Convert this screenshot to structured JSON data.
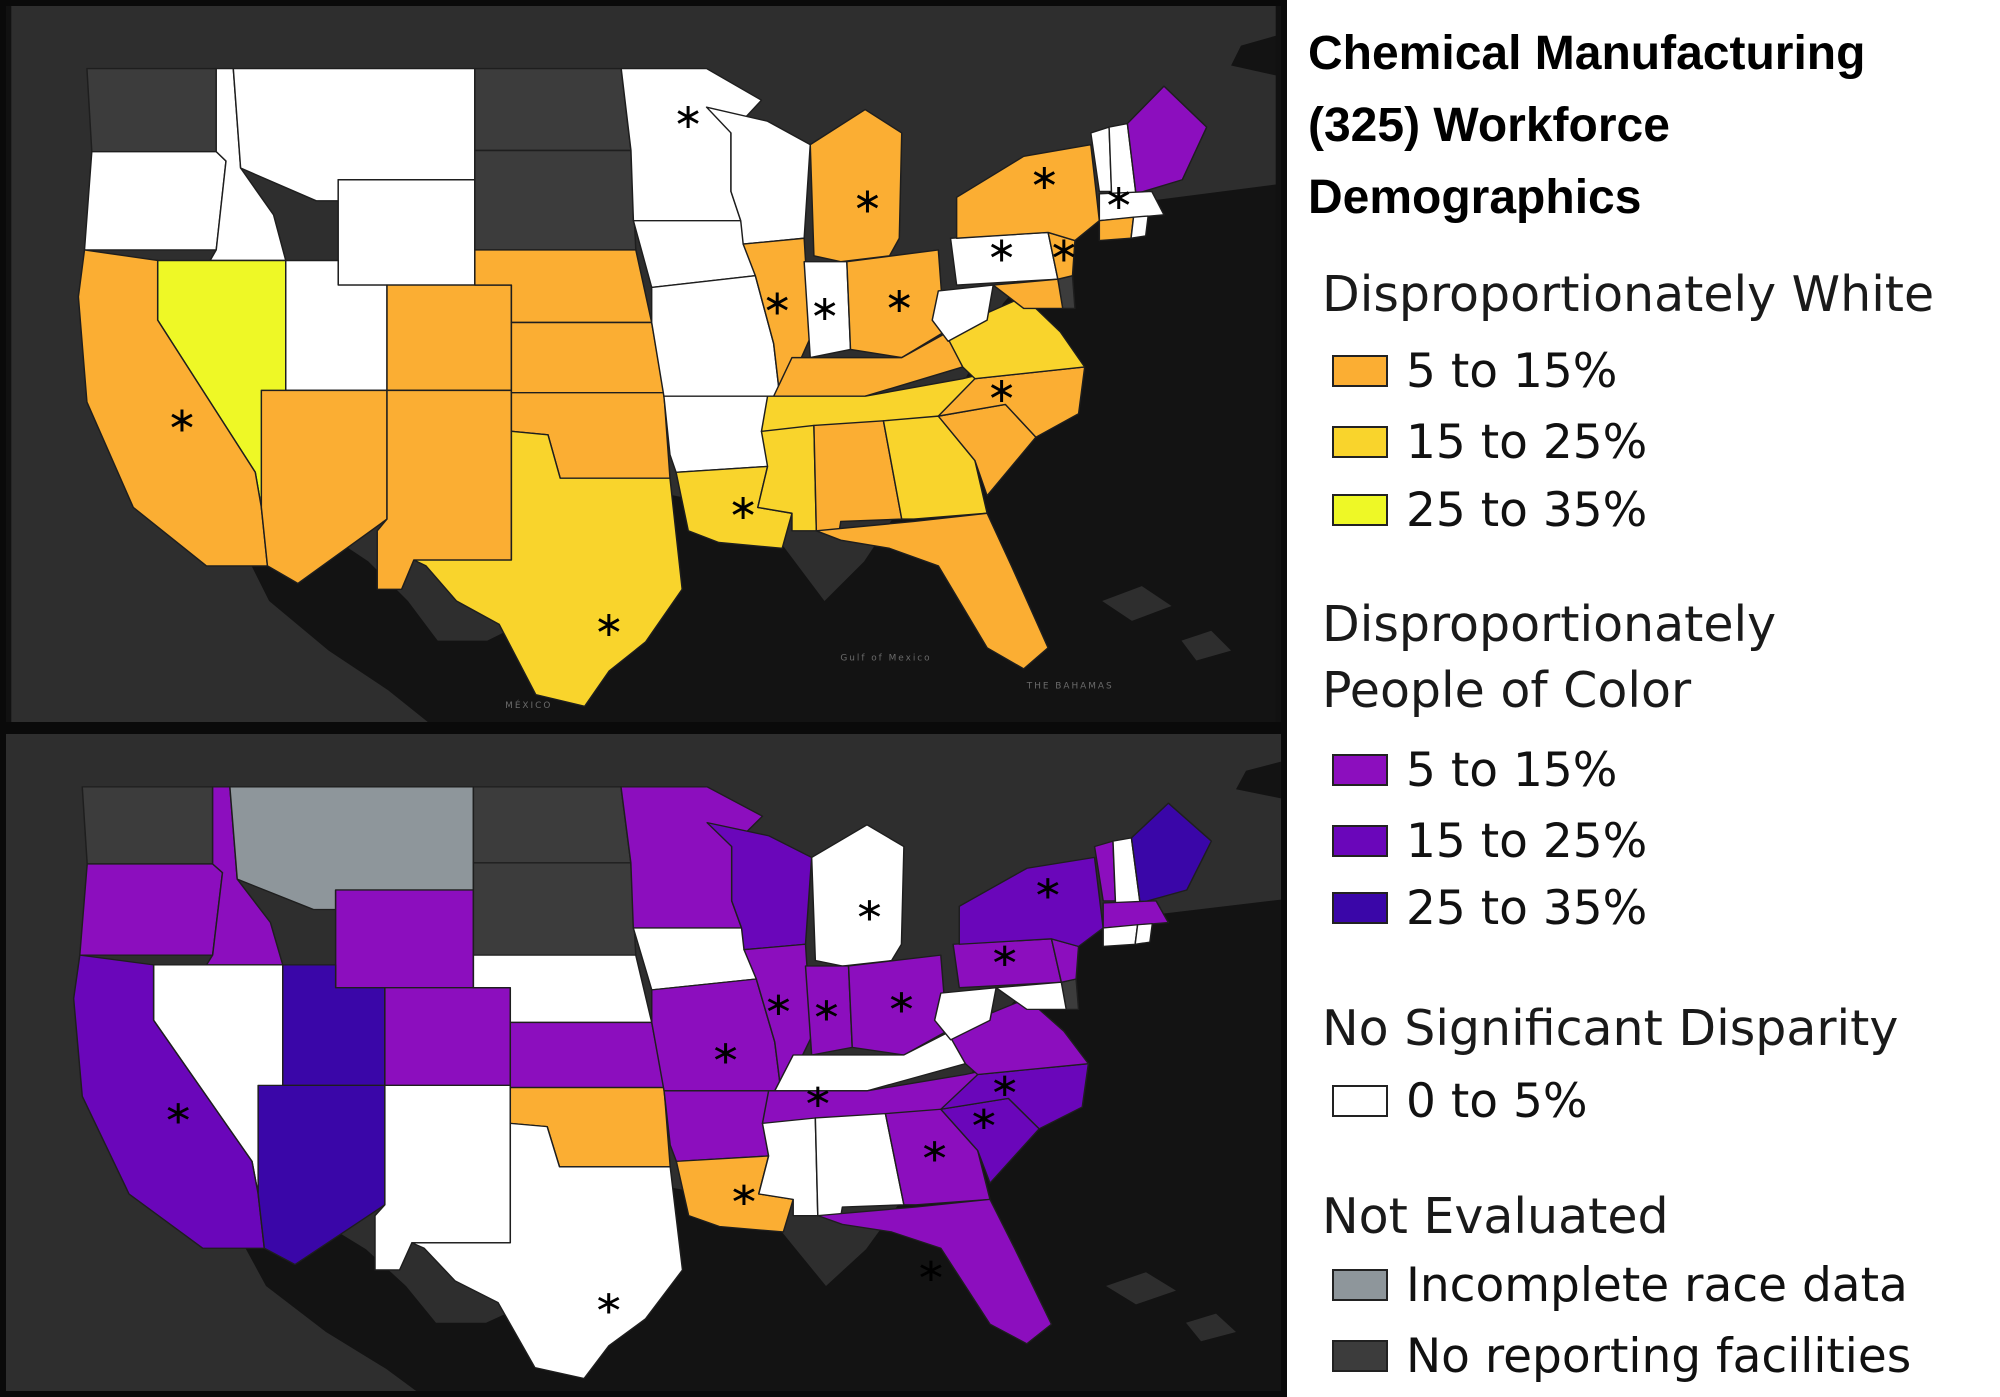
{
  "legend": {
    "title_lines": [
      "Chemical Manufacturing",
      "(325) Workforce",
      "Demographics"
    ],
    "white_heading": "Disproportionately White",
    "white_items": [
      {
        "label": "5 to 15%",
        "color": "#FBAE33"
      },
      {
        "label": "15 to 25%",
        "color": "#F9D42C"
      },
      {
        "label": "25 to 35%",
        "color": "#EEF826"
      }
    ],
    "poc_heading_lines": [
      "Disproportionately",
      "People of Color"
    ],
    "poc_items": [
      {
        "label": "5 to 15%",
        "color": "#8C0EBE"
      },
      {
        "label": "15 to 25%",
        "color": "#6A06BA"
      },
      {
        "label": "25 to 35%",
        "color": "#3A06A8"
      }
    ],
    "nodisp_heading": "No Significant Disparity",
    "nodisp_item": {
      "label": "0 to 5%",
      "color": "#FFFFFF"
    },
    "noteval_heading": "Not Evaluated",
    "noteval_items": [
      {
        "label": "Incomplete race data",
        "color": "#8E969B"
      },
      {
        "label": "No reporting facilities",
        "color": "#3C3C3C"
      }
    ]
  },
  "colors": {
    "white_5_15": "#FBAE33",
    "white_15_25": "#F9D42C",
    "white_25_35": "#EEF826",
    "poc_5_15": "#8C0EBE",
    "poc_15_25": "#6A06BA",
    "poc_25_35": "#3A06A8",
    "no_disparity": "#FFFFFF",
    "incomplete": "#8E969B",
    "no_facilities": "#3C3C3C",
    "land": "#2E2E2E",
    "water": "#131313"
  },
  "basemap_labels": [
    "MÉXICO",
    "Gulf of Mexico",
    "THE BAHAMAS"
  ],
  "maps": {
    "top": {
      "states": {
        "WA": "no_facilities",
        "OR": "no_disparity",
        "ID": "no_disparity",
        "MT": "no_disparity",
        "WY": "no_disparity",
        "CA": "white_5_15",
        "NV": "white_25_35",
        "UT": "no_disparity",
        "AZ": "white_5_15",
        "CO": "white_5_15",
        "NM": "white_5_15",
        "ND": "no_facilities",
        "SD": "no_facilities",
        "NE": "white_5_15",
        "KS": "white_5_15",
        "OK": "white_5_15",
        "TX": "white_15_25",
        "MN": "no_disparity",
        "IA": "no_disparity",
        "MO": "no_disparity",
        "AR": "no_disparity",
        "LA": "white_15_25",
        "WI": "no_disparity",
        "IL": "white_5_15",
        "MI": "white_5_15",
        "IN": "no_disparity",
        "OH": "white_5_15",
        "KY": "white_5_15",
        "TN": "white_15_25",
        "MS": "white_15_25",
        "AL": "white_5_15",
        "GA": "white_15_25",
        "FL": "white_5_15",
        "SC": "white_5_15",
        "NC": "white_5_15",
        "VA": "white_15_25",
        "WV": "no_disparity",
        "PA": "no_disparity",
        "NY": "white_5_15",
        "NJ": "white_5_15",
        "MD": "white_5_15",
        "DE": "no_facilities",
        "VT": "no_disparity",
        "NH": "no_disparity",
        "ME": "poc_5_15",
        "MA": "no_disparity",
        "CT": "white_5_15",
        "RI": "no_disparity"
      },
      "starred": [
        "MN",
        "MI",
        "NY",
        "MA",
        "IL",
        "IN",
        "OH",
        "PA",
        "NJ",
        "CA",
        "NC",
        "TX",
        "LA"
      ]
    },
    "bottom": {
      "states": {
        "WA": "no_facilities",
        "OR": "poc_5_15",
        "ID": "poc_5_15",
        "MT": "incomplete",
        "WY": "poc_5_15",
        "CA": "poc_15_25",
        "NV": "no_disparity",
        "UT": "poc_25_35",
        "AZ": "poc_25_35",
        "CO": "poc_5_15",
        "NM": "no_disparity",
        "ND": "no_facilities",
        "SD": "no_facilities",
        "NE": "no_disparity",
        "KS": "poc_5_15",
        "OK": "white_5_15",
        "TX": "no_disparity",
        "MN": "poc_5_15",
        "IA": "no_disparity",
        "MO": "poc_5_15",
        "AR": "poc_5_15",
        "LA": "white_5_15",
        "WI": "poc_15_25",
        "IL": "poc_5_15",
        "MI": "no_disparity",
        "IN": "poc_5_15",
        "OH": "poc_5_15",
        "KY": "no_disparity",
        "TN": "poc_5_15",
        "MS": "no_disparity",
        "AL": "no_disparity",
        "GA": "poc_5_15",
        "FL": "poc_5_15",
        "SC": "poc_15_25",
        "NC": "poc_15_25",
        "VA": "poc_5_15",
        "WV": "no_disparity",
        "PA": "poc_5_15",
        "NY": "poc_15_25",
        "NJ": "poc_5_15",
        "MD": "no_disparity",
        "DE": "no_facilities",
        "VT": "poc_5_15",
        "NH": "no_disparity",
        "ME": "poc_25_35",
        "MA": "poc_5_15",
        "CT": "no_disparity",
        "RI": "no_disparity"
      },
      "starred": [
        "MI",
        "NY",
        "IL",
        "IN",
        "OH",
        "PA",
        "MO",
        "CA",
        "TN",
        "NC",
        "GA",
        "SC",
        "TX",
        "LA",
        "FL"
      ]
    }
  }
}
